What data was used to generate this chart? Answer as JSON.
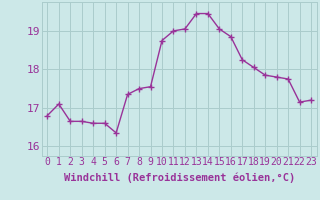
{
  "x": [
    0,
    1,
    2,
    3,
    4,
    5,
    6,
    7,
    8,
    9,
    10,
    11,
    12,
    13,
    14,
    15,
    16,
    17,
    18,
    19,
    20,
    21,
    22,
    23
  ],
  "y": [
    16.8,
    17.1,
    16.65,
    16.65,
    16.6,
    16.6,
    16.35,
    17.35,
    17.5,
    17.55,
    18.75,
    19.0,
    19.05,
    19.45,
    19.45,
    19.05,
    18.85,
    18.25,
    18.05,
    17.85,
    17.8,
    17.75,
    17.15,
    17.2
  ],
  "line_color": "#993399",
  "marker": "+",
  "marker_size": 4,
  "marker_lw": 1.0,
  "background_color": "#cce8e8",
  "grid_color": "#aacccc",
  "xlabel": "Windchill (Refroidissement éolien,°C)",
  "xlabel_fontsize": 7.5,
  "ylabel_ticks": [
    16,
    17,
    18,
    19
  ],
  "xlim": [
    -0.5,
    23.5
  ],
  "ylim": [
    15.75,
    19.75
  ],
  "xticks": [
    0,
    1,
    2,
    3,
    4,
    5,
    6,
    7,
    8,
    9,
    10,
    11,
    12,
    13,
    14,
    15,
    16,
    17,
    18,
    19,
    20,
    21,
    22,
    23
  ],
  "xtick_labels": [
    "0",
    "1",
    "2",
    "3",
    "4",
    "5",
    "6",
    "7",
    "8",
    "9",
    "10",
    "11",
    "12",
    "13",
    "14",
    "15",
    "16",
    "17",
    "18",
    "19",
    "20",
    "21",
    "22",
    "23"
  ],
  "tick_fontsize": 7,
  "tick_color": "#993399",
  "label_color": "#993399",
  "line_width": 1.0
}
